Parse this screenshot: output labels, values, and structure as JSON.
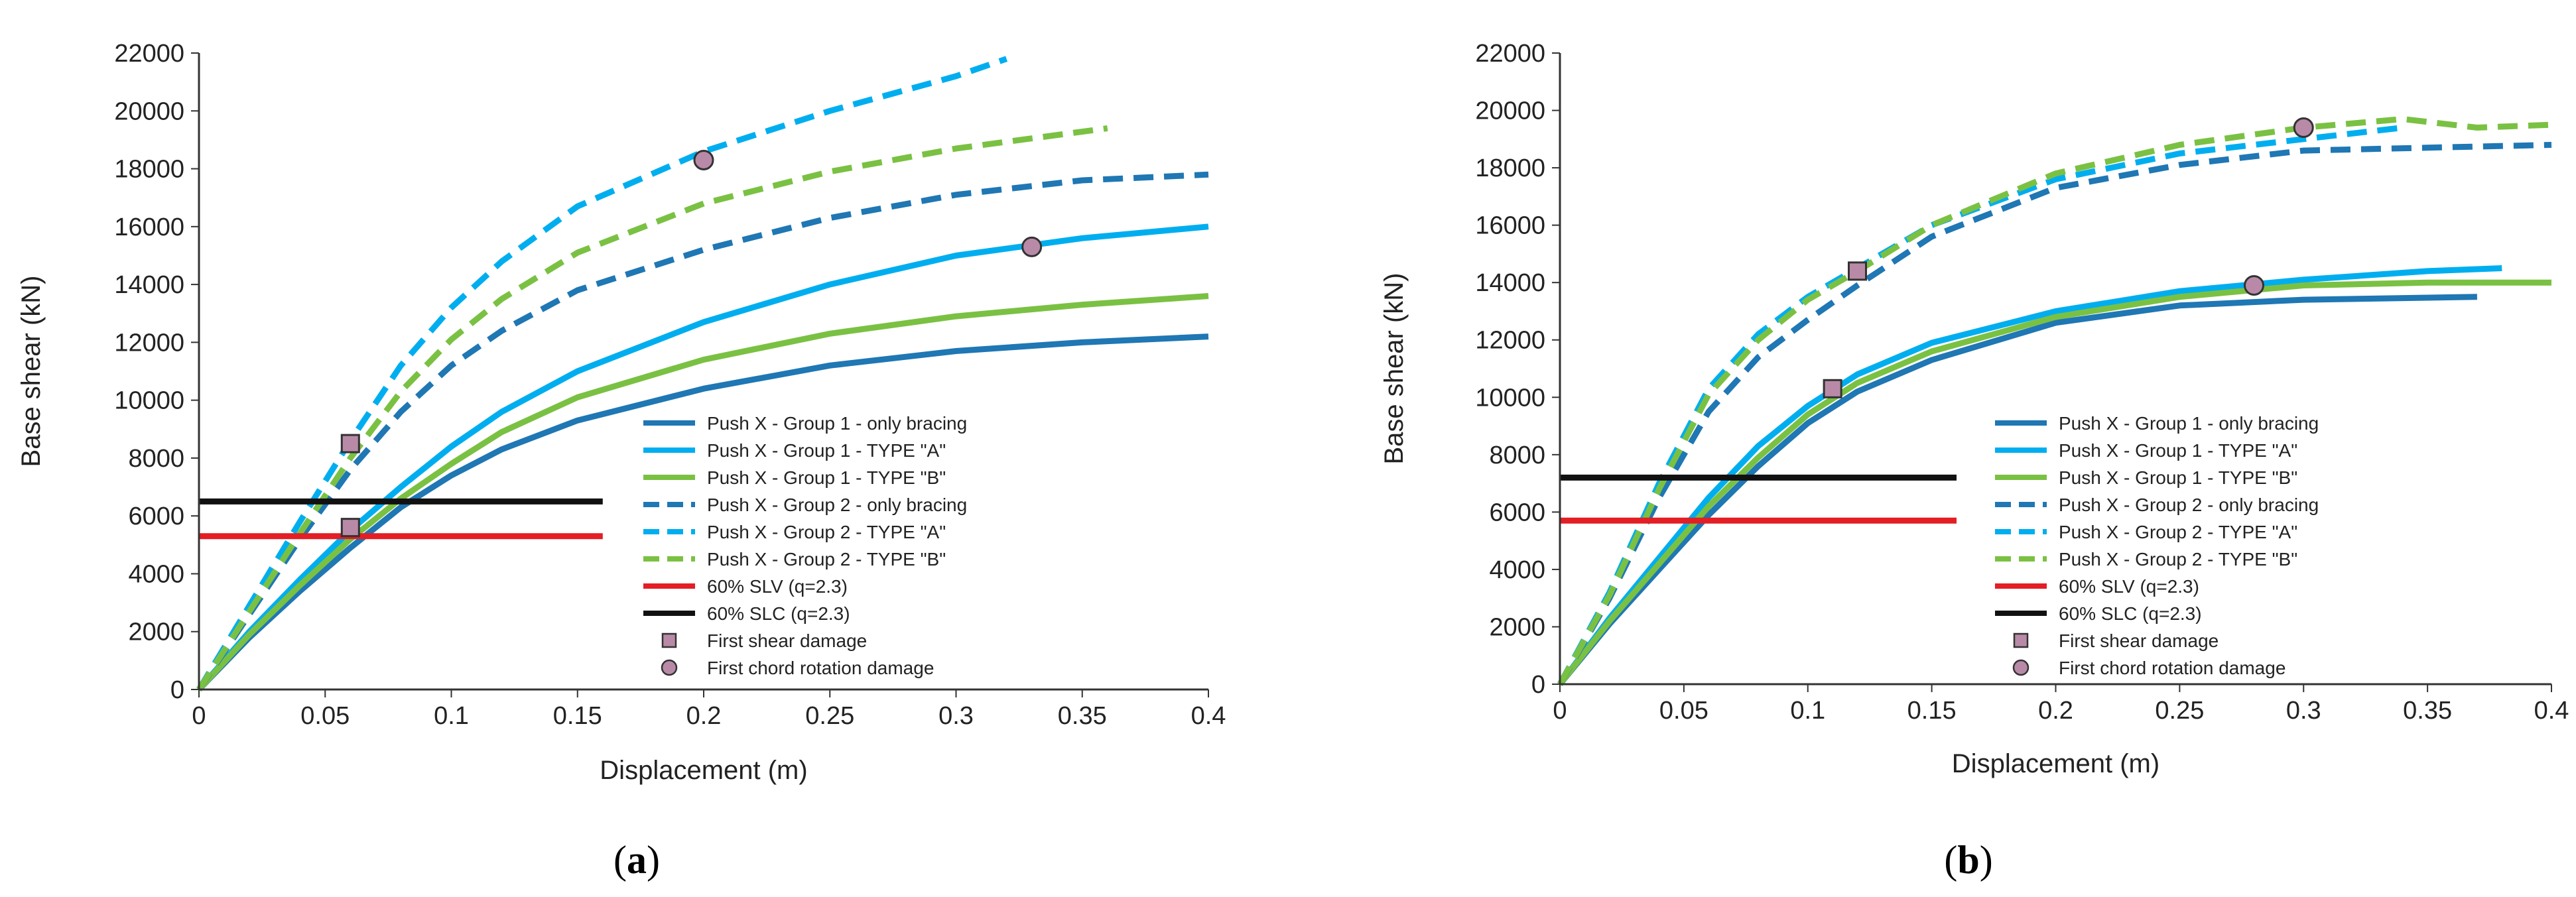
{
  "chart_data": [
    {
      "type": "line",
      "panel": "a",
      "caption": "(a)",
      "caption_label": "a",
      "title": "",
      "xlabel": "Displacement (m)",
      "ylabel": "Base shear (kN)",
      "xlim": [
        0,
        0.4
      ],
      "ylim": [
        0,
        22000
      ],
      "xticks": [
        "0",
        "0.05",
        "0.1",
        "0.15",
        "0.2",
        "0.25",
        "0.3",
        "0.35",
        "0.4"
      ],
      "yticks": [
        "0",
        "2000",
        "4000",
        "6000",
        "8000",
        "10000",
        "12000",
        "14000",
        "16000",
        "18000",
        "20000",
        "22000"
      ],
      "grid": false,
      "legend_position": "center-right",
      "series": [
        {
          "name": "Push X - Group 1 - only bracing",
          "color": "#1f77b4",
          "style": "solid",
          "x": [
            0,
            0.02,
            0.04,
            0.06,
            0.08,
            0.1,
            0.12,
            0.15,
            0.2,
            0.25,
            0.3,
            0.35,
            0.4
          ],
          "y": [
            0,
            1800,
            3400,
            4900,
            6300,
            7400,
            8300,
            9300,
            10400,
            11200,
            11700,
            12000,
            12200
          ]
        },
        {
          "name": "Push X - Group 1 - TYPE \"A\"",
          "color": "#00aeef",
          "style": "solid",
          "x": [
            0,
            0.02,
            0.04,
            0.06,
            0.08,
            0.1,
            0.12,
            0.15,
            0.2,
            0.25,
            0.3,
            0.35,
            0.4
          ],
          "y": [
            0,
            2000,
            3800,
            5500,
            7000,
            8400,
            9600,
            11000,
            12700,
            14000,
            15000,
            15600,
            16000
          ]
        },
        {
          "name": "Push X - Group 1 - TYPE \"B\"",
          "color": "#7ac143",
          "style": "solid",
          "x": [
            0,
            0.02,
            0.04,
            0.06,
            0.08,
            0.1,
            0.12,
            0.15,
            0.2,
            0.25,
            0.3,
            0.35,
            0.4
          ],
          "y": [
            0,
            1900,
            3600,
            5200,
            6600,
            7800,
            8900,
            10100,
            11400,
            12300,
            12900,
            13300,
            13600
          ]
        },
        {
          "name": "Push X - Group 2 - only bracing",
          "color": "#1f77b4",
          "style": "dashed",
          "x": [
            0,
            0.02,
            0.04,
            0.06,
            0.08,
            0.1,
            0.12,
            0.15,
            0.2,
            0.25,
            0.3,
            0.35,
            0.4
          ],
          "y": [
            0,
            2600,
            5200,
            7600,
            9600,
            11200,
            12400,
            13800,
            15200,
            16300,
            17100,
            17600,
            17800
          ]
        },
        {
          "name": "Push X - Group 2 - TYPE \"A\"",
          "color": "#00aeef",
          "style": "dashed",
          "x": [
            0,
            0.02,
            0.04,
            0.06,
            0.08,
            0.1,
            0.12,
            0.15,
            0.2,
            0.25,
            0.3,
            0.32
          ],
          "y": [
            0,
            2900,
            5800,
            8600,
            11200,
            13200,
            14800,
            16700,
            18600,
            20000,
            21200,
            21800
          ]
        },
        {
          "name": "Push X - Group 2 - TYPE \"B\"",
          "color": "#7ac143",
          "style": "dashed",
          "x": [
            0,
            0.02,
            0.04,
            0.06,
            0.08,
            0.1,
            0.12,
            0.15,
            0.2,
            0.25,
            0.3,
            0.36
          ],
          "y": [
            0,
            2700,
            5400,
            8000,
            10300,
            12100,
            13500,
            15100,
            16800,
            17900,
            18700,
            19400
          ]
        },
        {
          "name": "60% SLV (q=2.3)",
          "color": "#e31e24",
          "style": "solid",
          "x": [
            0,
            0.16
          ],
          "y": [
            5300,
            5300
          ]
        },
        {
          "name": "60% SLC (q=2.3)",
          "color": "#111111",
          "style": "solid",
          "x": [
            0,
            0.16
          ],
          "y": [
            6500,
            6500
          ]
        }
      ],
      "markers": [
        {
          "name": "First shear damage",
          "shape": "square",
          "points": [
            [
              0.06,
              8500
            ],
            [
              0.06,
              5600
            ]
          ]
        },
        {
          "name": "First chord rotation damage",
          "shape": "circle",
          "points": [
            [
              0.2,
              18300
            ],
            [
              0.33,
              15300
            ]
          ]
        }
      ]
    },
    {
      "type": "line",
      "panel": "b",
      "caption": "(b)",
      "caption_label": "b",
      "title": "",
      "xlabel": "Displacement (m)",
      "ylabel": "Base shear (kN)",
      "xlim": [
        0,
        0.4
      ],
      "ylim": [
        0,
        22000
      ],
      "xticks": [
        "0",
        "0.05",
        "0.1",
        "0.15",
        "0.2",
        "0.25",
        "0.3",
        "0.35",
        "0.4"
      ],
      "yticks": [
        "0",
        "2000",
        "4000",
        "6000",
        "8000",
        "10000",
        "12000",
        "14000",
        "16000",
        "18000",
        "20000",
        "22000"
      ],
      "grid": false,
      "legend_position": "center-right",
      "series": [
        {
          "name": "Push X - Group 1 - only bracing",
          "color": "#1f77b4",
          "style": "solid",
          "x": [
            0,
            0.02,
            0.04,
            0.06,
            0.08,
            0.1,
            0.12,
            0.15,
            0.2,
            0.25,
            0.3,
            0.37
          ],
          "y": [
            0,
            2100,
            4000,
            5900,
            7600,
            9100,
            10200,
            11300,
            12600,
            13200,
            13400,
            13500
          ]
        },
        {
          "name": "Push X - Group 1 - TYPE \"A\"",
          "color": "#00aeef",
          "style": "solid",
          "x": [
            0,
            0.02,
            0.04,
            0.06,
            0.08,
            0.1,
            0.12,
            0.15,
            0.2,
            0.25,
            0.3,
            0.35,
            0.38
          ],
          "y": [
            0,
            2300,
            4400,
            6500,
            8300,
            9700,
            10800,
            11900,
            13000,
            13700,
            14100,
            14400,
            14500
          ]
        },
        {
          "name": "Push X - Group 1 - TYPE \"B\"",
          "color": "#7ac143",
          "style": "solid",
          "x": [
            0,
            0.02,
            0.04,
            0.06,
            0.08,
            0.1,
            0.12,
            0.15,
            0.2,
            0.25,
            0.3,
            0.35,
            0.4
          ],
          "y": [
            0,
            2200,
            4200,
            6200,
            7900,
            9400,
            10500,
            11600,
            12800,
            13500,
            13900,
            14000,
            14000
          ]
        },
        {
          "name": "Push X - Group 2 - only bracing",
          "color": "#1f77b4",
          "style": "dashed",
          "x": [
            0,
            0.02,
            0.04,
            0.06,
            0.08,
            0.1,
            0.12,
            0.15,
            0.2,
            0.25,
            0.3,
            0.35,
            0.4
          ],
          "y": [
            0,
            3000,
            6500,
            9500,
            11400,
            12700,
            13900,
            15600,
            17300,
            18100,
            18600,
            18700,
            18800
          ]
        },
        {
          "name": "Push X - Group 2 - TYPE \"A\"",
          "color": "#00aeef",
          "style": "dashed",
          "x": [
            0,
            0.02,
            0.04,
            0.06,
            0.08,
            0.1,
            0.12,
            0.15,
            0.2,
            0.25,
            0.3,
            0.34
          ],
          "y": [
            0,
            3200,
            7000,
            10300,
            12200,
            13500,
            14500,
            16000,
            17600,
            18500,
            19000,
            19400
          ]
        },
        {
          "name": "Push X - Group 2 - TYPE \"B\"",
          "color": "#7ac143",
          "style": "dashed",
          "x": [
            0,
            0.02,
            0.04,
            0.06,
            0.08,
            0.1,
            0.12,
            0.15,
            0.2,
            0.25,
            0.3,
            0.34,
            0.37,
            0.4
          ],
          "y": [
            0,
            3100,
            6800,
            10100,
            12000,
            13400,
            14400,
            16000,
            17800,
            18800,
            19400,
            19700,
            19400,
            19500
          ]
        },
        {
          "name": "60% SLV (q=2.3)",
          "color": "#e31e24",
          "style": "solid",
          "x": [
            0,
            0.16
          ],
          "y": [
            5700,
            5700
          ]
        },
        {
          "name": "60% SLC (q=2.3)",
          "color": "#111111",
          "style": "solid",
          "x": [
            0,
            0.16
          ],
          "y": [
            7200,
            7200
          ]
        }
      ],
      "markers": [
        {
          "name": "First shear damage",
          "shape": "square",
          "points": [
            [
              0.12,
              14400
            ],
            [
              0.11,
              10300
            ]
          ]
        },
        {
          "name": "First chord rotation damage",
          "shape": "circle",
          "points": [
            [
              0.3,
              19400
            ],
            [
              0.28,
              13900
            ]
          ]
        }
      ]
    }
  ]
}
